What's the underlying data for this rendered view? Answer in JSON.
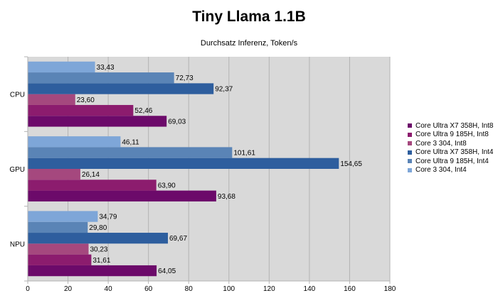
{
  "chart_data": {
    "type": "bar",
    "orientation": "horizontal",
    "title": "Tiny Llama 1.1B",
    "subtitle": "Durchsatz Inferenz, Token/s",
    "xlabel": "",
    "ylabel": "",
    "xlim": [
      0,
      180
    ],
    "xticks": [
      0,
      20,
      40,
      60,
      80,
      100,
      120,
      140,
      160,
      180
    ],
    "grid": true,
    "legend_position": "right",
    "categories": [
      "CPU",
      "GPU",
      "NPU"
    ],
    "series": [
      {
        "name": "Core Ultra X7 358H, Int8",
        "color": "#6c0a6a",
        "values": [
          69.03,
          93.68,
          64.05
        ],
        "labels": [
          "69,03",
          "93,68",
          "64,05"
        ]
      },
      {
        "name": "Core Ultra 9 185H, Int8",
        "color": "#8c1c6e",
        "values": [
          52.46,
          63.9,
          31.61
        ],
        "labels": [
          "52,46",
          "63,90",
          "31,61"
        ]
      },
      {
        "name": "Core 3 304, Int8",
        "color": "#a5487e",
        "values": [
          23.6,
          26.14,
          30.23
        ],
        "labels": [
          "23,60",
          "26,14",
          "30,23"
        ]
      },
      {
        "name": "Core Ultra X7 358H, Int4",
        "color": "#2e5e9e",
        "values": [
          92.37,
          154.65,
          69.67
        ],
        "labels": [
          "92,37",
          "154,65",
          "69,67"
        ]
      },
      {
        "name": "Core Ultra 9 185H, Int4",
        "color": "#5a84b6",
        "values": [
          72.73,
          101.61,
          29.8
        ],
        "labels": [
          "72,73",
          "101,61",
          "29,80"
        ]
      },
      {
        "name": "Core 3 304, Int4",
        "color": "#7ea6d8",
        "values": [
          33.43,
          46.11,
          34.79
        ],
        "labels": [
          "33,43",
          "46,11",
          "34,79"
        ]
      }
    ]
  }
}
